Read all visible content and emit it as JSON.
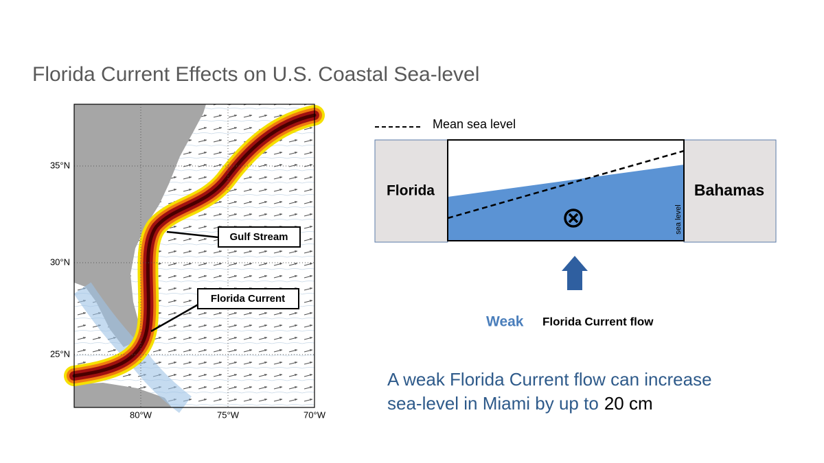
{
  "title": "Florida Current Effects on U.S. Coastal Sea-level",
  "map": {
    "lat_labels": [
      "35°N",
      "30°N",
      "25°N"
    ],
    "lon_labels": [
      "80°W",
      "75°W",
      "70°W"
    ],
    "callouts": [
      "Gulf Stream",
      "Florida Current"
    ]
  },
  "diagram": {
    "legend": "Mean sea level",
    "left_label": "Florida",
    "right_label": "Bahamas",
    "side_label": "sea level",
    "strength": "Weak",
    "flow_label": "Florida Current flow"
  },
  "conclusion": {
    "lines": [
      "A weak Florida Current flow can increase",
      "sea-level in Miami by up to"
    ],
    "highlight": "20 cm"
  }
}
